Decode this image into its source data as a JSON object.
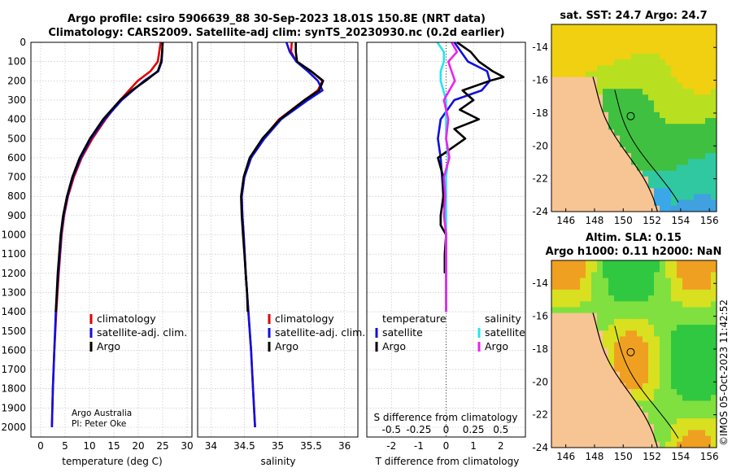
{
  "header": {
    "title_line1": "Argo profile: csiro 5906639_88 30-Sep-2023 18.01S 150.8E (NRT data)",
    "title_line2": "Climatology: CARS2009. Satellite-adj clim: synTS_20230930.nc (0.2d earlier)"
  },
  "colors": {
    "climatology": "#e00000",
    "satellite": "#1010e0",
    "argo": "#000000",
    "sal_satellite": "#22e6ee",
    "sal_argo": "#ee22ee"
  },
  "chart_data": [
    {
      "type": "line",
      "name": "temperature-profile",
      "xlabel": "temperature (deg C)",
      "ylabel": "",
      "xlim": [
        -2,
        31
      ],
      "ylim": [
        2050,
        0
      ],
      "xticks": [
        "0",
        "5",
        "10",
        "15",
        "20",
        "25",
        "30"
      ],
      "yticks": [
        "0",
        "100",
        "200",
        "300",
        "400",
        "500",
        "600",
        "700",
        "800",
        "900",
        "1000",
        "1100",
        "1200",
        "1300",
        "1400",
        "1500",
        "1600",
        "1700",
        "1800",
        "1900",
        "2000"
      ],
      "legend": [
        "climatology",
        "satellite-adj. clim.",
        "Argo"
      ],
      "annotation": [
        "Argo Australia",
        "PI: Peter Oke"
      ],
      "series": [
        {
          "name": "climatology",
          "depth": [
            0,
            100,
            150,
            200,
            300,
            400,
            500,
            600,
            700,
            800,
            900,
            1000,
            1200,
            1400,
            1600,
            1800,
            2000
          ],
          "values": [
            24.6,
            24.0,
            22.5,
            19.9,
            16.3,
            13.3,
            10.6,
            8.4,
            6.8,
            5.6,
            4.8,
            4.3,
            3.7,
            3.2,
            2.8,
            2.5,
            2.3
          ]
        },
        {
          "name": "satellite-adj. clim.",
          "depth": [
            0,
            100,
            150,
            200,
            300,
            400,
            500,
            600,
            700,
            800,
            900,
            1000,
            1200,
            1400,
            1600,
            1800,
            2000
          ],
          "values": [
            25.0,
            24.8,
            24.1,
            21.2,
            16.6,
            13.1,
            10.3,
            8.2,
            6.6,
            5.5,
            4.7,
            4.2,
            3.6,
            3.1,
            2.8,
            2.5,
            2.3
          ]
        },
        {
          "name": "Argo",
          "depth": [
            0,
            50,
            100,
            150,
            200,
            250,
            300,
            400,
            500,
            600,
            700,
            800,
            900,
            1000,
            1100,
            1200,
            1300,
            1400
          ],
          "values": [
            25.0,
            24.9,
            24.7,
            24.0,
            21.5,
            18.7,
            16.3,
            12.8,
            10.1,
            8.0,
            6.5,
            5.4,
            4.6,
            4.1,
            3.8,
            3.5,
            3.3,
            3.1
          ]
        }
      ]
    },
    {
      "type": "line",
      "name": "salinity-profile",
      "xlabel": "salinity",
      "xlim": [
        33.8,
        36.2
      ],
      "ylim": [
        2050,
        0
      ],
      "xticks": [
        "34",
        "34.5",
        "35",
        "35.5",
        "36"
      ],
      "legend": [
        "climatology",
        "satellite-adj. clim.",
        "Argo"
      ],
      "series": [
        {
          "name": "climatology",
          "depth": [
            0,
            50,
            100,
            150,
            200,
            250,
            300,
            400,
            500,
            600,
            700,
            800,
            900,
            1000,
            1200,
            1400,
            1600,
            1800,
            2000
          ],
          "values": [
            35.21,
            35.2,
            35.28,
            35.5,
            35.67,
            35.6,
            35.4,
            35.02,
            34.78,
            34.6,
            34.5,
            34.46,
            34.47,
            34.49,
            34.52,
            34.56,
            34.6,
            34.63,
            34.66
          ]
        },
        {
          "name": "satellite-adj. clim.",
          "depth": [
            0,
            50,
            100,
            150,
            200,
            250,
            300,
            400,
            500,
            600,
            700,
            800,
            900,
            1000,
            1200,
            1400,
            1600,
            1800,
            2000
          ],
          "values": [
            35.13,
            35.18,
            35.28,
            35.45,
            35.6,
            35.67,
            35.45,
            35.05,
            34.8,
            34.6,
            34.5,
            34.46,
            34.47,
            34.49,
            34.52,
            34.56,
            34.6,
            34.63,
            34.66
          ]
        },
        {
          "name": "Argo",
          "depth": [
            0,
            50,
            100,
            150,
            200,
            250,
            300,
            400,
            500,
            600,
            700,
            800,
            900,
            1000,
            1100,
            1200,
            1300,
            1400
          ],
          "values": [
            35.27,
            35.27,
            35.29,
            35.5,
            35.68,
            35.62,
            35.4,
            35.03,
            34.77,
            34.58,
            34.49,
            34.45,
            34.46,
            34.48,
            34.5,
            34.52,
            34.54,
            34.55
          ]
        }
      ]
    },
    {
      "type": "line",
      "name": "difference-profile",
      "xlabel": "T difference from climatology",
      "xlabel2": "S difference from climatology",
      "xlim": [
        -2.9,
        2.9
      ],
      "ylim": [
        2050,
        0
      ],
      "xticks": [
        "-2",
        "-1",
        "0",
        "1",
        "2"
      ],
      "xticks_s": [
        "-0.5",
        "-0.25",
        "0",
        "0.25",
        "0.5"
      ],
      "legend_left_title": "temperature",
      "legend_right_title": "salinity",
      "legend_left": [
        "satellite",
        "Argo"
      ],
      "legend_right": [
        "satellite",
        "Argo"
      ],
      "series": [
        {
          "name": "temperature satellite",
          "depth": [
            0,
            100,
            150,
            200,
            250,
            300,
            400,
            500,
            600,
            700,
            800,
            900,
            1000,
            1100,
            1200,
            1300,
            1400
          ],
          "values": [
            0.3,
            0.8,
            1.5,
            1.6,
            1.3,
            0.3,
            -0.2,
            -0.3,
            -0.2,
            -0.15,
            -0.1,
            -0.05,
            0,
            0,
            0,
            0,
            0
          ]
        },
        {
          "name": "temperature Argo",
          "depth": [
            0,
            50,
            100,
            150,
            180,
            200,
            250,
            300,
            350,
            400,
            450,
            500,
            550,
            600,
            700,
            800,
            900,
            950,
            1000,
            1100,
            1200
          ],
          "values": [
            0.4,
            0.9,
            1.2,
            1.7,
            2.1,
            1.6,
            0.6,
            1.0,
            0.5,
            1.2,
            0.3,
            0.7,
            0.2,
            -0.3,
            -0.1,
            -0.1,
            -0.2,
            -0.2,
            0,
            -0.05,
            -0.05
          ]
        },
        {
          "name": "salinity satellite",
          "depth": [
            0,
            50,
            100,
            150,
            200,
            300,
            400,
            500,
            600,
            700,
            800,
            900,
            1000,
            1100,
            1200,
            1300,
            1400
          ],
          "values": [
            -0.08,
            -0.02,
            -0.02,
            -0.05,
            -0.05,
            0,
            0,
            0,
            0.02,
            0,
            0,
            0,
            0,
            0,
            0,
            0,
            0
          ]
        },
        {
          "name": "salinity Argo",
          "depth": [
            0,
            50,
            100,
            150,
            200,
            250,
            300,
            400,
            500,
            600,
            700,
            800,
            900,
            1000,
            1100,
            1200,
            1300,
            1400
          ],
          "values": [
            0.05,
            0.1,
            0.02,
            0.05,
            0.08,
            0.03,
            -0.02,
            0.02,
            0,
            0.03,
            -0.02,
            -0.01,
            -0.02,
            0,
            0,
            0,
            0,
            0
          ]
        }
      ]
    },
    {
      "type": "heatmap",
      "name": "sst-map",
      "title": "sat. SST: 24.7 Argo: 24.7",
      "xticks": [
        "146",
        "148",
        "150",
        "152",
        "154",
        "156"
      ],
      "yticks": [
        "-14",
        "-16",
        "-18",
        "-20",
        "-22",
        "-24"
      ],
      "xlim": [
        145,
        156.5
      ],
      "ylim": [
        -24,
        -12.6
      ]
    },
    {
      "type": "heatmap",
      "name": "sla-map",
      "title_line1": "Altim. SLA: 0.15",
      "title_line2": "Argo h1000: 0.11 h2000: NaN",
      "xticks": [
        "146",
        "148",
        "150",
        "152",
        "154",
        "156"
      ],
      "yticks": [
        "-14",
        "-16",
        "-18",
        "-20",
        "-22",
        "-24"
      ],
      "xlim": [
        145,
        156.5
      ],
      "ylim": [
        -24,
        -12.6
      ]
    }
  ],
  "footer": {
    "credit": "©IMOS 05-Oct-2023 11:42:52"
  }
}
